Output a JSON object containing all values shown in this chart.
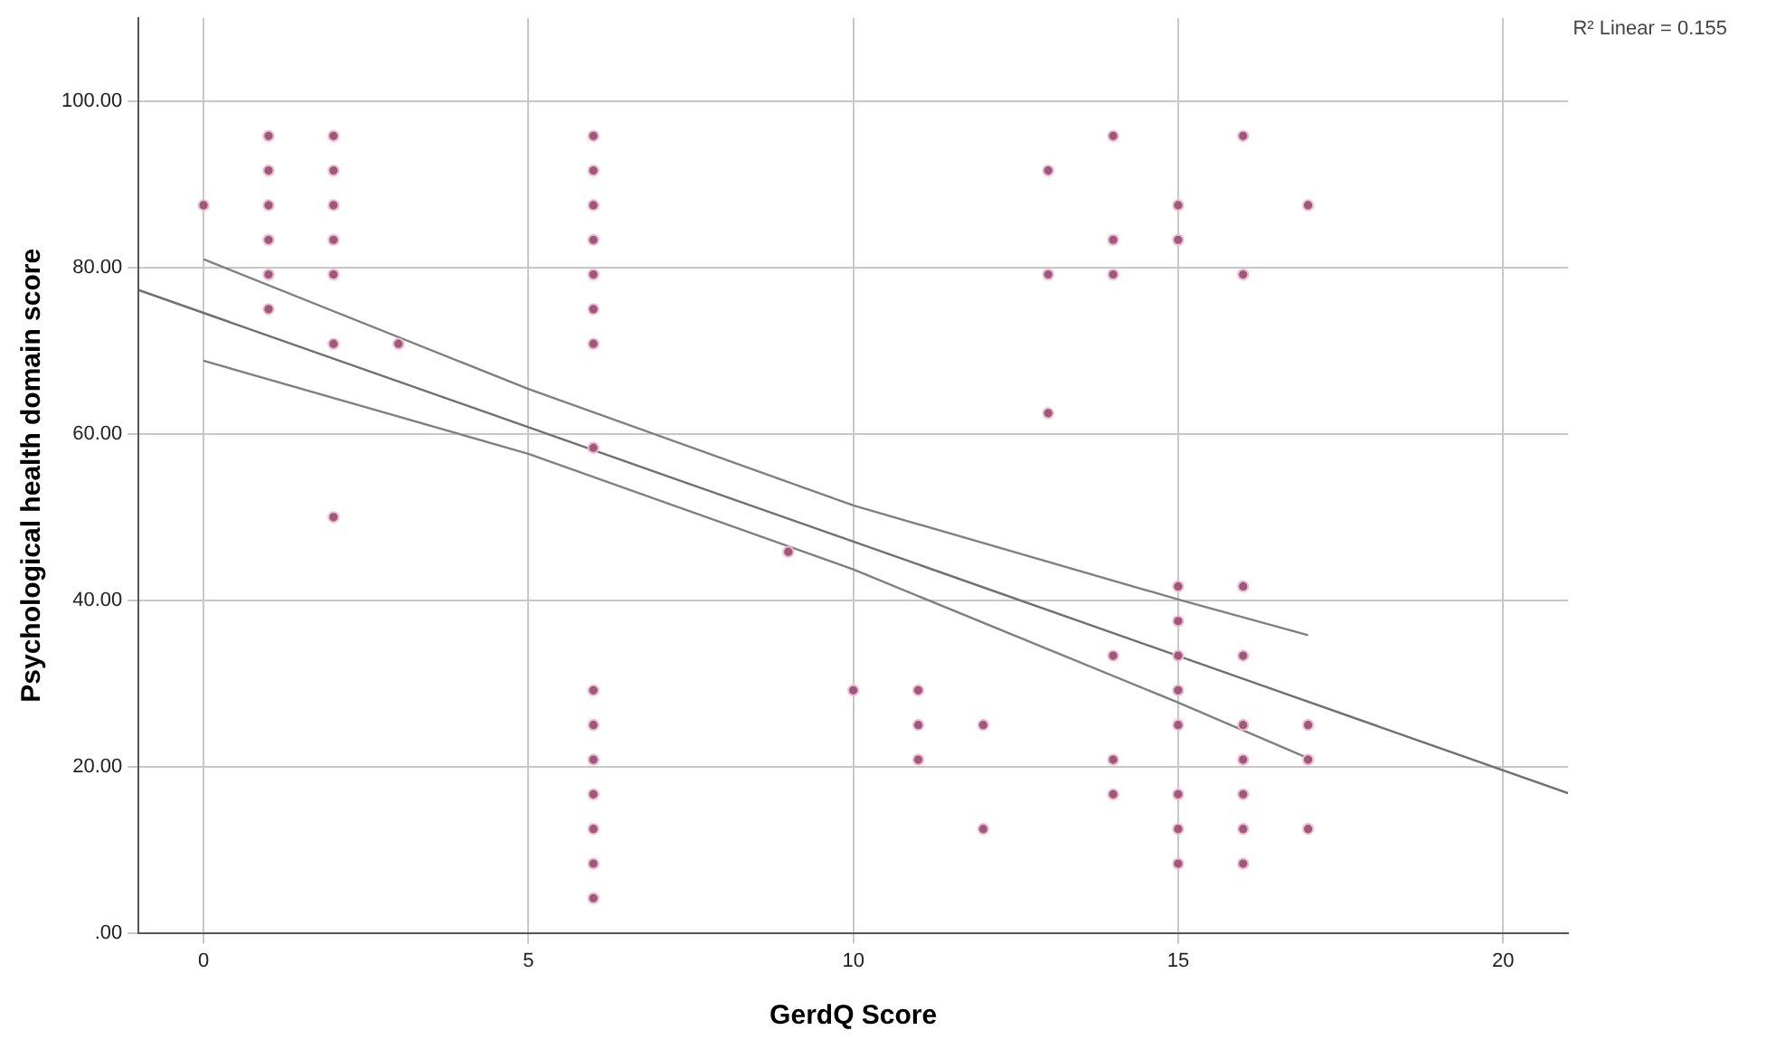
{
  "chart_data": {
    "type": "scatter",
    "xlabel": "GerdQ Score",
    "ylabel": "Psychological health domain score",
    "annotations": [
      "R² Linear = 0.155"
    ],
    "xlim": [
      -1,
      21
    ],
    "xticks": [
      0,
      5,
      10,
      15,
      20
    ],
    "ylim": [
      0,
      110
    ],
    "yticks": [
      {
        "value": 0,
        "label": ".00"
      },
      {
        "value": 20,
        "label": "20.00"
      },
      {
        "value": 40,
        "label": "40.00"
      },
      {
        "value": 60,
        "label": "60.00"
      },
      {
        "value": 80,
        "label": "80.00"
      },
      {
        "value": 100,
        "label": "100.00"
      }
    ],
    "grid": true,
    "legend": false,
    "marker": "circle",
    "series": [
      {
        "color": "#9c5a7a",
        "x": [
          0,
          1,
          1,
          1,
          1,
          1,
          1,
          2,
          2,
          2,
          2,
          2,
          2,
          2,
          3,
          6,
          6,
          6,
          6,
          6,
          6,
          6,
          6,
          6,
          6,
          6,
          6,
          6,
          6,
          6,
          9,
          10,
          11,
          11,
          11,
          12,
          12,
          13,
          13,
          13,
          14,
          14,
          14,
          14,
          14,
          14,
          15,
          15,
          15,
          15,
          15,
          15,
          15,
          15,
          15,
          15,
          16,
          16,
          16,
          16,
          16,
          16,
          16,
          16,
          16,
          17,
          17,
          17,
          17
        ],
        "values": [
          87.5,
          95.83,
          91.67,
          87.5,
          83.33,
          79.17,
          75,
          95.83,
          91.67,
          87.5,
          83.33,
          79.17,
          70.83,
          50,
          70.83,
          95.83,
          91.67,
          87.5,
          83.33,
          79.17,
          75,
          70.83,
          58.33,
          29.17,
          25,
          20.83,
          16.67,
          12.5,
          8.33,
          4.17,
          45.83,
          29.17,
          29.17,
          25,
          20.83,
          25,
          12.5,
          91.67,
          79.17,
          62.5,
          95.83,
          83.33,
          79.17,
          33.33,
          20.83,
          16.67,
          87.5,
          83.33,
          41.67,
          37.5,
          33.33,
          29.17,
          25,
          16.67,
          12.5,
          8.33,
          95.83,
          79.17,
          41.67,
          33.33,
          25,
          20.83,
          16.67,
          12.5,
          8.33,
          87.5,
          25,
          20.83,
          12.5
        ]
      },
      {
        "type": "line",
        "color": "#707070",
        "marker": "none",
        "x": [
          -1,
          21
        ],
        "values": [
          77.3,
          16.8
        ]
      },
      {
        "type": "line",
        "color": "#808080",
        "marker": "none",
        "x": [
          0,
          5,
          10,
          15,
          17
        ],
        "values": [
          81,
          65.4,
          51.4,
          40.1,
          35.8
        ]
      },
      {
        "type": "line",
        "color": "#808080",
        "marker": "none",
        "x": [
          0,
          5,
          10,
          15,
          17
        ],
        "values": [
          68.8,
          57.6,
          43.7,
          27.7,
          21
        ]
      }
    ]
  }
}
